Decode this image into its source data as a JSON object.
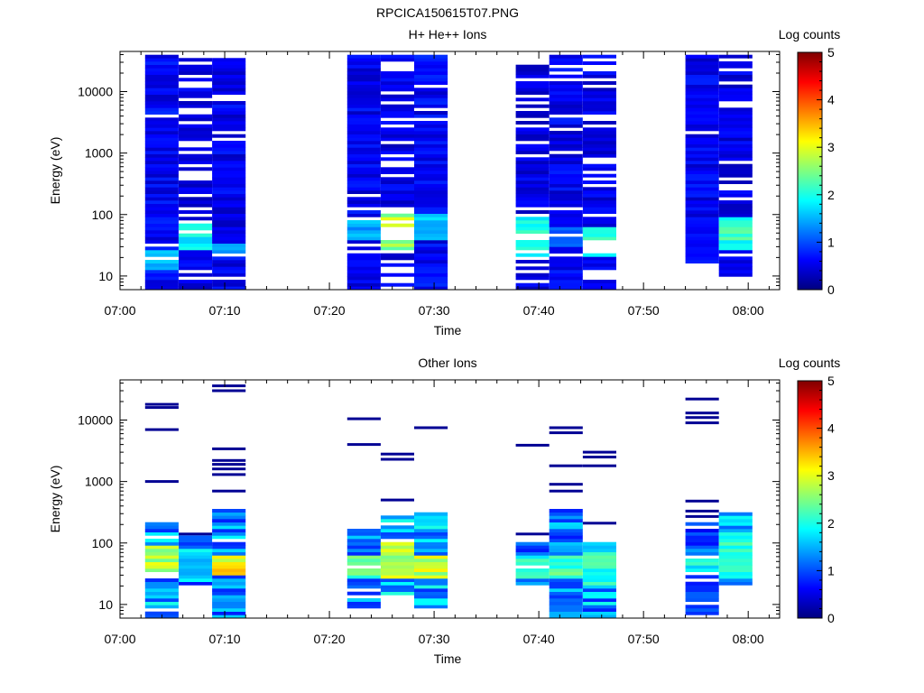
{
  "figure_title": "RPCICA150615T07.PNG",
  "chart_data": [
    {
      "type": "heatmap",
      "title": "H+ He++ Ions",
      "xlabel": "Time",
      "ylabel": "Energy (eV)",
      "x_ticks": [
        "07:00",
        "07:10",
        "07:20",
        "07:30",
        "07:40",
        "07:50",
        "08:00"
      ],
      "xlim_minutes": [
        0,
        63
      ],
      "y_scale": "log",
      "y_ticks": [
        "10",
        "100",
        "1000",
        "10000"
      ],
      "ylim": [
        6,
        45000
      ],
      "colorbar": {
        "label": "Log counts",
        "range": [
          0,
          5
        ],
        "ticks": [
          "0",
          "1",
          "2",
          "3",
          "4",
          "5"
        ]
      },
      "columns": [
        {
          "t0": 2.4,
          "t1": 5.6,
          "emin": 6,
          "emax": 40000,
          "base": 0.6,
          "hot_min": 12,
          "hot_max": 25,
          "hot_level": 1.6,
          "gaps": 0.05,
          "seed": 11
        },
        {
          "t0": 5.6,
          "t1": 8.8,
          "emin": 6,
          "emax": 40000,
          "base": 0.5,
          "hot_min": 25,
          "hot_max": 80,
          "hot_level": 1.9,
          "gaps": 0.3,
          "seed": 12
        },
        {
          "t0": 8.8,
          "t1": 12.0,
          "emin": 6,
          "emax": 40000,
          "base": 0.55,
          "hot_min": 20,
          "hot_max": 35,
          "hot_level": 1.4,
          "gaps": 0.1,
          "seed": 13
        },
        {
          "t0": 21.7,
          "t1": 24.9,
          "emin": 6,
          "emax": 40000,
          "base": 0.55,
          "hot_min": 40,
          "hot_max": 80,
          "hot_level": 1.5,
          "gaps": 0.08,
          "seed": 14
        },
        {
          "t0": 24.9,
          "t1": 28.1,
          "emin": 6,
          "emax": 40000,
          "base": 0.5,
          "hot_min": 25,
          "hot_max": 100,
          "hot_level": 2.8,
          "gaps": 0.3,
          "seed": 15
        },
        {
          "t0": 28.1,
          "t1": 31.3,
          "emin": 6,
          "emax": 40000,
          "base": 0.6,
          "hot_min": 40,
          "hot_max": 100,
          "hot_level": 1.7,
          "gaps": 0.05,
          "seed": 16
        },
        {
          "t0": 37.8,
          "t1": 41.0,
          "emin": 6,
          "emax": 40000,
          "base": 0.5,
          "hot_min": 20,
          "hot_max": 100,
          "hot_level": 2.0,
          "gaps": 0.3,
          "seed": 17
        },
        {
          "t0": 41.0,
          "t1": 44.2,
          "emin": 6,
          "emax": 40000,
          "base": 0.55,
          "hot_min": 30,
          "hot_max": 60,
          "hot_level": 1.2,
          "gaps": 0.12,
          "seed": 18
        },
        {
          "t0": 44.2,
          "t1": 47.4,
          "emin": 6,
          "emax": 40000,
          "base": 0.5,
          "hot_min": 20,
          "hot_max": 60,
          "hot_level": 2.3,
          "gaps": 0.25,
          "seed": 19
        },
        {
          "t0": 54.0,
          "t1": 57.2,
          "emin": 15,
          "emax": 40000,
          "base": 0.55,
          "hot_min": 15,
          "hot_max": 40,
          "hot_level": 0.7,
          "gaps": 0.06,
          "seed": 20
        },
        {
          "t0": 57.2,
          "t1": 60.4,
          "emin": 10,
          "emax": 40000,
          "base": 0.5,
          "hot_min": 25,
          "hot_max": 90,
          "hot_level": 2.2,
          "gaps": 0.15,
          "seed": 21
        }
      ]
    },
    {
      "type": "heatmap",
      "title": "Other Ions",
      "xlabel": "Time",
      "ylabel": "Energy (eV)",
      "x_ticks": [
        "07:00",
        "07:10",
        "07:20",
        "07:30",
        "07:40",
        "07:50",
        "08:00"
      ],
      "xlim_minutes": [
        0,
        63
      ],
      "y_scale": "log",
      "y_ticks": [
        "10",
        "100",
        "1000",
        "10000"
      ],
      "ylim": [
        6,
        45000
      ],
      "colorbar": {
        "label": "Log counts",
        "range": [
          0,
          5
        ],
        "ticks": [
          "0",
          "1",
          "2",
          "3",
          "4",
          "5"
        ]
      },
      "columns": [
        {
          "t0": 2.4,
          "t1": 5.6,
          "emin": 6,
          "emax": 220,
          "base": 1.4,
          "hot_min": 30,
          "hot_max": 90,
          "hot_level": 2.8,
          "gaps": 0.08,
          "seed": 31,
          "lines": [
            18000,
            16000,
            7000,
            1000
          ]
        },
        {
          "t0": 5.6,
          "t1": 8.8,
          "emin": 20,
          "emax": 130,
          "base": 1.3,
          "hot_min": 30,
          "hot_max": 80,
          "hot_level": 1.8,
          "gaps": 0.05,
          "seed": 32,
          "lines": [
            140
          ]
        },
        {
          "t0": 8.8,
          "t1": 12.0,
          "emin": 6,
          "emax": 360,
          "base": 1.3,
          "hot_min": 30,
          "hot_max": 60,
          "hot_level": 3.2,
          "gaps": 0.08,
          "seed": 33,
          "lines": [
            36000,
            30000,
            3400,
            2200,
            1900,
            1600,
            1300,
            700
          ]
        },
        {
          "t0": 21.7,
          "t1": 24.9,
          "emin": 9,
          "emax": 200,
          "base": 1.2,
          "hot_min": 25,
          "hot_max": 60,
          "hot_level": 2.4,
          "gaps": 0.1,
          "seed": 34,
          "lines": [
            10500,
            4000
          ]
        },
        {
          "t0": 24.9,
          "t1": 28.1,
          "emin": 15,
          "emax": 280,
          "base": 1.5,
          "hot_min": 25,
          "hot_max": 100,
          "hot_level": 3.0,
          "gaps": 0.05,
          "seed": 35,
          "lines": [
            2800,
            2300,
            500
          ]
        },
        {
          "t0": 28.1,
          "t1": 31.3,
          "emin": 9,
          "emax": 320,
          "base": 1.4,
          "hot_min": 25,
          "hot_max": 60,
          "hot_level": 3.0,
          "gaps": 0.06,
          "seed": 36,
          "lines": [
            7500
          ]
        },
        {
          "t0": 37.8,
          "t1": 41.0,
          "emin": 20,
          "emax": 110,
          "base": 1.1,
          "hot_min": 25,
          "hot_max": 60,
          "hot_level": 2.1,
          "gaps": 0.05,
          "seed": 37,
          "lines": [
            3900,
            140
          ]
        },
        {
          "t0": 41.0,
          "t1": 44.2,
          "emin": 6,
          "emax": 360,
          "base": 1.2,
          "hot_min": 25,
          "hot_max": 60,
          "hot_level": 2.3,
          "gaps": 0.1,
          "seed": 38,
          "lines": [
            7500,
            6200,
            1800,
            900,
            700
          ]
        },
        {
          "t0": 44.2,
          "t1": 47.4,
          "emin": 6,
          "emax": 100,
          "base": 1.4,
          "hot_min": 20,
          "hot_max": 70,
          "hot_level": 2.2,
          "gaps": 0.05,
          "seed": 39,
          "lines": [
            3000,
            2500,
            1800,
            210
          ]
        },
        {
          "t0": 54.0,
          "t1": 57.2,
          "emin": 6,
          "emax": 230,
          "base": 1.0,
          "hot_min": 30,
          "hot_max": 60,
          "hot_level": 2.0,
          "gaps": 0.15,
          "seed": 40,
          "lines": [
            22000,
            13000,
            11000,
            9000,
            480,
            330,
            270
          ]
        },
        {
          "t0": 57.2,
          "t1": 60.4,
          "emin": 20,
          "emax": 330,
          "base": 1.6,
          "hot_min": 30,
          "hot_max": 160,
          "hot_level": 2.1,
          "gaps": 0.03,
          "seed": 41
        }
      ]
    }
  ]
}
